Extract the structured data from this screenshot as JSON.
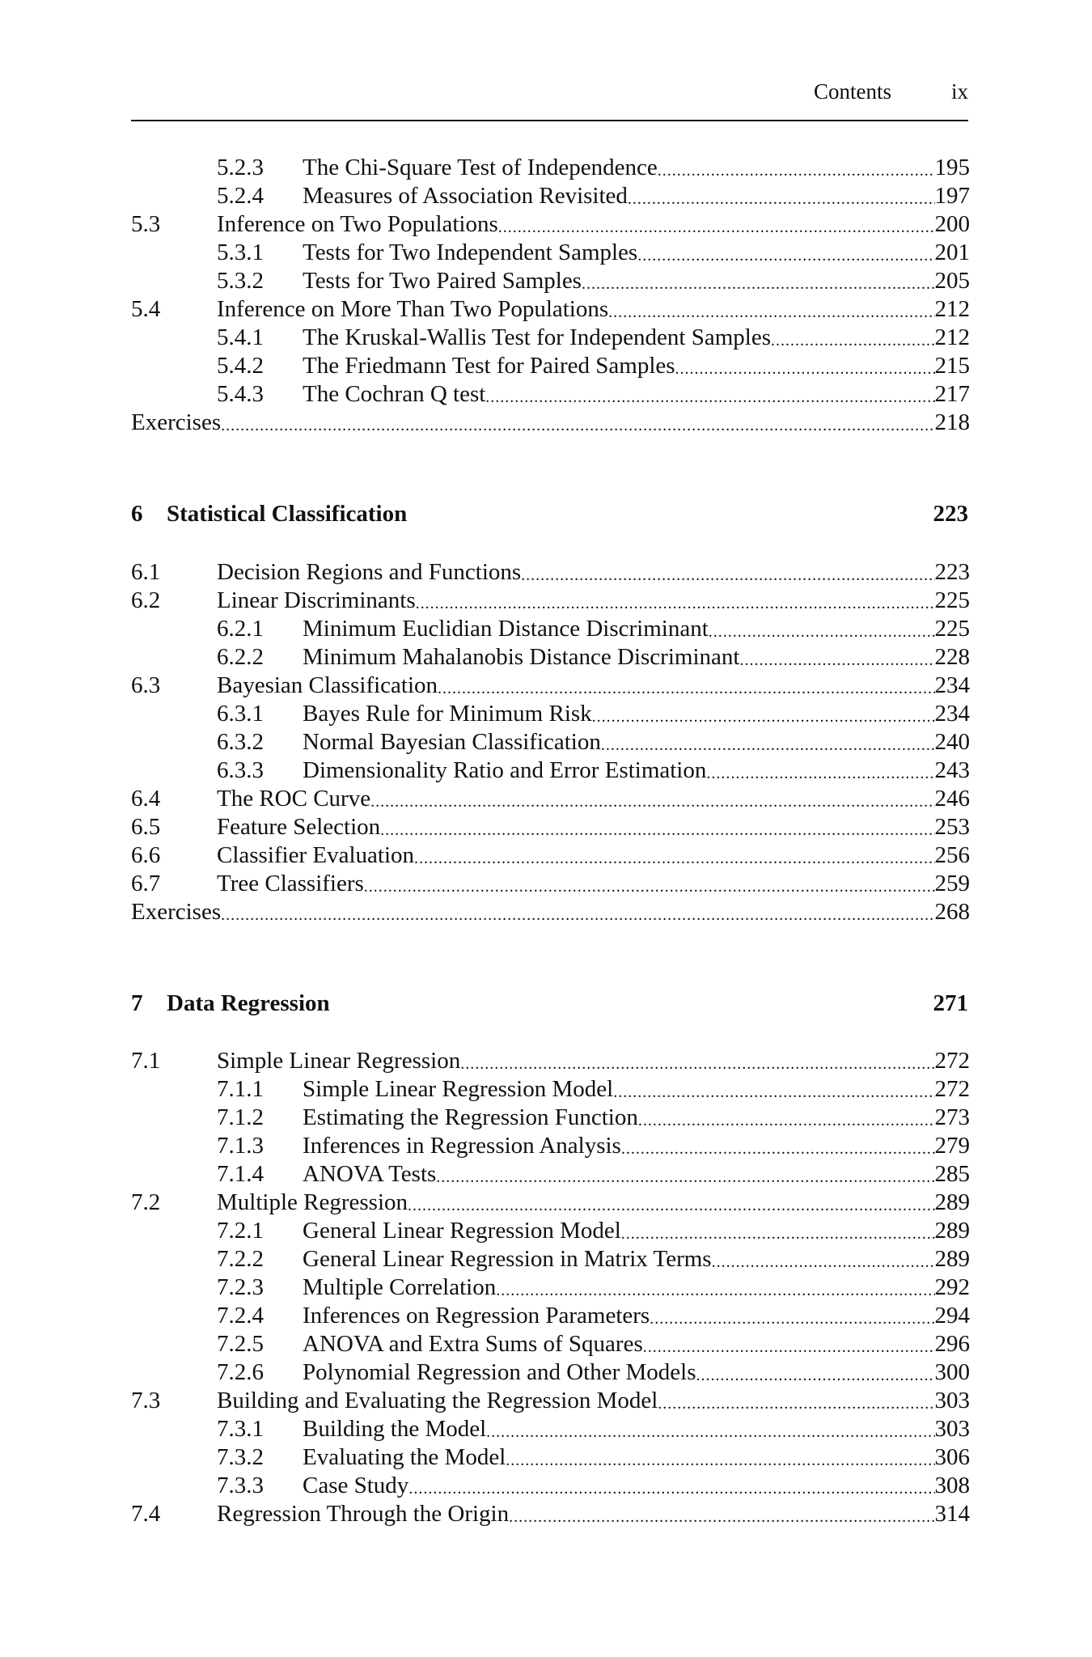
{
  "header": {
    "section": "Contents",
    "page": "ix"
  },
  "blocks": [
    {
      "entries": [
        {
          "level": 2,
          "num": "5.2.3",
          "title": "The Chi-Square Test of Independence",
          "page": "195"
        },
        {
          "level": 2,
          "num": "5.2.4",
          "title": "Measures of Association Revisited",
          "page": "197"
        },
        {
          "level": 1,
          "num": "5.3",
          "title": "Inference on Two Populations",
          "page": "200"
        },
        {
          "level": 2,
          "num": "5.3.1",
          "title": "Tests for Two Independent Samples",
          "page": "201"
        },
        {
          "level": 2,
          "num": "5.3.2",
          "title": "Tests for Two Paired Samples",
          "page": "205"
        },
        {
          "level": 1,
          "num": "5.4",
          "title": "Inference on More Than Two Populations",
          "page": "212"
        },
        {
          "level": 2,
          "num": "5.4.1",
          "title": "The Kruskal-Wallis Test for Independent Samples",
          "page": "212"
        },
        {
          "level": 2,
          "num": "5.4.2",
          "title": "The Friedmann Test for Paired Samples",
          "page": "215"
        },
        {
          "level": 2,
          "num": "5.4.3",
          "title": "The Cochran Q test",
          "page": "217"
        },
        {
          "level": 0,
          "num": "",
          "title": "Exercises",
          "page": "218"
        }
      ]
    },
    {
      "chapter": {
        "num": "6",
        "title": "Statistical Classification",
        "page": "223"
      },
      "entries": [
        {
          "level": 1,
          "num": "6.1",
          "title": "Decision Regions and Functions",
          "page": "223"
        },
        {
          "level": 1,
          "num": "6.2",
          "title": "Linear Discriminants",
          "page": "225"
        },
        {
          "level": 2,
          "num": "6.2.1",
          "title": "Minimum Euclidian Distance Discriminant",
          "page": "225"
        },
        {
          "level": 2,
          "num": "6.2.2",
          "title": "Minimum Mahalanobis Distance Discriminant",
          "page": "228"
        },
        {
          "level": 1,
          "num": "6.3",
          "title": "Bayesian Classification",
          "page": "234"
        },
        {
          "level": 2,
          "num": "6.3.1",
          "title": "Bayes Rule for Minimum Risk",
          "page": "234"
        },
        {
          "level": 2,
          "num": "6.3.2",
          "title": "Normal Bayesian Classification",
          "page": "240"
        },
        {
          "level": 2,
          "num": "6.3.3",
          "title": "Dimensionality Ratio and Error Estimation",
          "page": "243"
        },
        {
          "level": 1,
          "num": "6.4",
          "title": "The ROC Curve",
          "page": "246"
        },
        {
          "level": 1,
          "num": "6.5",
          "title": "Feature Selection",
          "page": "253"
        },
        {
          "level": 1,
          "num": "6.6",
          "title": "Classifier Evaluation",
          "page": "256"
        },
        {
          "level": 1,
          "num": "6.7",
          "title": "Tree Classifiers",
          "page": "259"
        },
        {
          "level": 0,
          "num": "",
          "title": "Exercises",
          "page": "268"
        }
      ]
    },
    {
      "chapter": {
        "num": "7",
        "title": "Data Regression",
        "page": "271"
      },
      "entries": [
        {
          "level": 1,
          "num": "7.1",
          "title": "Simple Linear Regression",
          "page": "272"
        },
        {
          "level": 2,
          "num": "7.1.1",
          "title": "Simple Linear Regression Model",
          "page": "272"
        },
        {
          "level": 2,
          "num": "7.1.2",
          "title": "Estimating the Regression Function",
          "page": "273"
        },
        {
          "level": 2,
          "num": "7.1.3",
          "title": "Inferences in Regression Analysis",
          "page": "279"
        },
        {
          "level": 2,
          "num": "7.1.4",
          "title": "ANOVA Tests",
          "page": "285"
        },
        {
          "level": 1,
          "num": "7.2",
          "title": "Multiple Regression",
          "page": "289"
        },
        {
          "level": 2,
          "num": "7.2.1",
          "title": "General Linear Regression Model",
          "page": "289"
        },
        {
          "level": 2,
          "num": "7.2.2",
          "title": "General Linear Regression in Matrix Terms",
          "page": "289"
        },
        {
          "level": 2,
          "num": "7.2.3",
          "title": "Multiple Correlation",
          "page": "292"
        },
        {
          "level": 2,
          "num": "7.2.4",
          "title": "Inferences on Regression Parameters",
          "page": "294"
        },
        {
          "level": 2,
          "num": "7.2.5",
          "title": "ANOVA and Extra Sums of Squares",
          "page": "296"
        },
        {
          "level": 2,
          "num": "7.2.6",
          "title": "Polynomial Regression and Other Models",
          "page": "300"
        },
        {
          "level": 1,
          "num": "7.3",
          "title": "Building and Evaluating the Regression Model",
          "page": "303"
        },
        {
          "level": 2,
          "num": "7.3.1",
          "title": "Building the Model",
          "page": "303"
        },
        {
          "level": 2,
          "num": "7.3.2",
          "title": "Evaluating the Model",
          "page": "306"
        },
        {
          "level": 2,
          "num": "7.3.3",
          "title": "Case Study",
          "page": "308"
        },
        {
          "level": 1,
          "num": "7.4",
          "title": "Regression Through the Origin",
          "page": "314"
        }
      ]
    }
  ]
}
